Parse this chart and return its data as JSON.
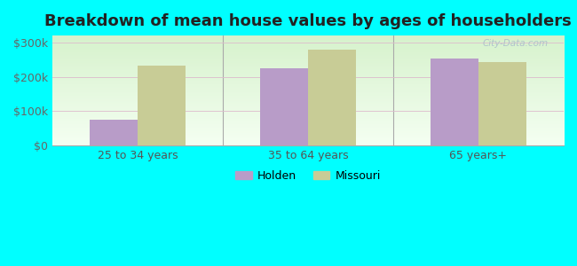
{
  "title": "Breakdown of mean house values by ages of householders",
  "categories": [
    "25 to 34 years",
    "35 to 64 years",
    "65 years+"
  ],
  "holden_values": [
    75000,
    225000,
    252000
  ],
  "missouri_values": [
    232000,
    278000,
    243000
  ],
  "holden_color": "#b89cc8",
  "missouri_color": "#c8cc96",
  "background_color": "#00ffff",
  "plot_bg_top": "#e8f5e0",
  "plot_bg_bottom": "#f8fff8",
  "yticks": [
    0,
    100000,
    200000,
    300000
  ],
  "ytick_labels": [
    "$0",
    "$100k",
    "$200k",
    "$300k"
  ],
  "ylim": [
    0,
    320000
  ],
  "legend_labels": [
    "Holden",
    "Missouri"
  ],
  "bar_width": 0.28,
  "title_fontsize": 13,
  "tick_fontsize": 9,
  "legend_fontsize": 9
}
